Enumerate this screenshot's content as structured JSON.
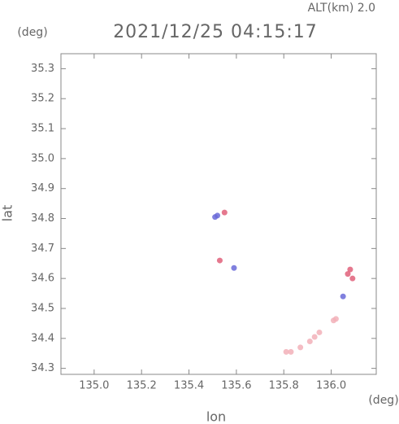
{
  "chart_data": {
    "type": "scatter",
    "title": "2021/12/25 04:15:17",
    "annotation": "ALT(km) 2.0",
    "x_label": "lon",
    "y_label": "lat",
    "x_unit": "(deg)",
    "y_unit": "(deg)",
    "xlim": [
      134.86,
      136.19
    ],
    "ylim": [
      34.28,
      35.35
    ],
    "xticks": [
      {
        "value": 135,
        "label": "135.0"
      },
      135.2,
      135.4,
      135.6,
      135.8,
      {
        "value": 136,
        "label": "136.0"
      }
    ],
    "yticks": [
      34.3,
      34.4,
      34.5,
      34.6,
      34.7,
      34.8,
      34.9,
      {
        "value": 35,
        "label": "35.0"
      },
      35.1,
      35.2,
      35.3
    ],
    "series": [
      {
        "color": "#6a6ad8",
        "x": [
          135.51,
          135.52,
          135.59,
          136.05
        ],
        "values": [
          34.805,
          34.81,
          34.635,
          34.54
        ]
      },
      {
        "color": "#e0607a",
        "x": [
          135.53,
          136.08,
          136.07,
          136.09,
          135.55
        ],
        "values": [
          34.66,
          34.63,
          34.615,
          34.6,
          34.82
        ]
      },
      {
        "color": "#f2b0b8",
        "x": [
          136.01,
          136.02,
          135.95,
          135.93,
          135.91,
          135.87,
          135.81,
          135.83
        ],
        "values": [
          34.46,
          34.465,
          34.42,
          34.405,
          34.39,
          34.37,
          34.355,
          34.355
        ]
      }
    ]
  }
}
